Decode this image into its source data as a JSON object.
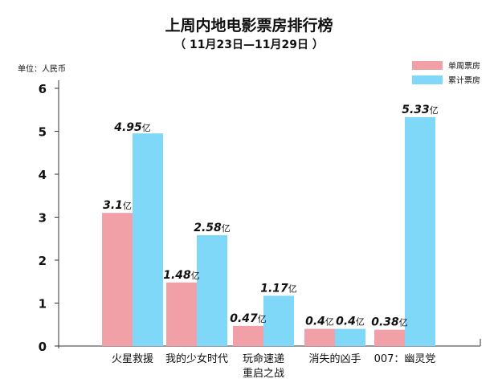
{
  "chart_data": {
    "type": "bar",
    "title": "上周内地电影票房排行榜",
    "subtitle": "（ 11月23日—11月29日 ）",
    "unit_label": "单位：人民币",
    "ylim": [
      0,
      6
    ],
    "yticks": [
      "0",
      "1",
      "2",
      "3",
      "4",
      "5",
      "6"
    ],
    "categories": [
      [
        "火星救援"
      ],
      [
        "我的少女时代"
      ],
      [
        "玩命速递",
        "重启之战"
      ],
      [
        "消失的凶手"
      ],
      [
        "007：幽灵党"
      ]
    ],
    "value_unit": "亿",
    "series": [
      {
        "name": "单周票房",
        "color": "#f2a0a8",
        "values": [
          3.1,
          1.48,
          0.47,
          0.4,
          0.38
        ],
        "labels": [
          "3.1",
          "1.48",
          "0.47",
          "0.4",
          "0.38"
        ]
      },
      {
        "name": "累计票房",
        "color": "#7fd8f8",
        "values": [
          4.95,
          2.58,
          1.17,
          0.4,
          5.33
        ],
        "labels": [
          "4.95",
          "2.58",
          "1.17",
          "0.4",
          "5.33"
        ]
      }
    ],
    "legend_position": "top-right"
  }
}
